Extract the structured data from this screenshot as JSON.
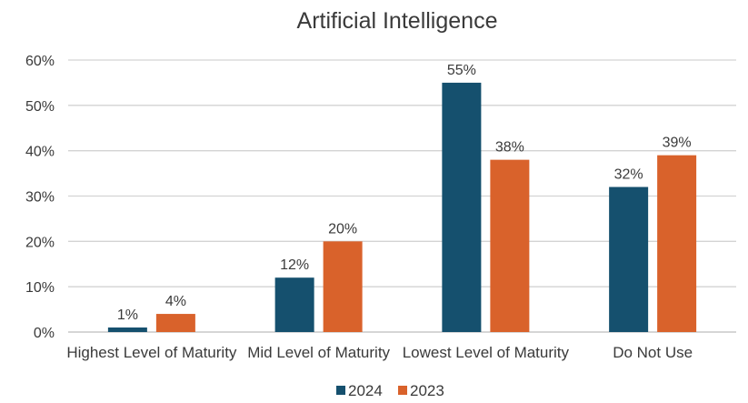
{
  "chart_data": {
    "type": "bar",
    "title": "Artificial Intelligence",
    "categories": [
      "Highest Level of Maturity",
      "Mid Level of Maturity",
      "Lowest Level of Maturity",
      "Do Not Use"
    ],
    "series": [
      {
        "name": "2024",
        "color": "#15506e",
        "values": [
          1,
          12,
          55,
          32
        ],
        "labels": [
          "1%",
          "12%",
          "55%",
          "32%"
        ]
      },
      {
        "name": "2023",
        "color": "#d9622b",
        "values": [
          4,
          20,
          38,
          39
        ],
        "labels": [
          "4%",
          "20%",
          "38%",
          "39%"
        ]
      }
    ],
    "ylim": [
      0,
      60
    ],
    "yticks": [
      0,
      10,
      20,
      30,
      40,
      50,
      60
    ],
    "ytick_labels": [
      "0%",
      "10%",
      "20%",
      "30%",
      "40%",
      "50%",
      "60%"
    ],
    "grid": true,
    "legend": "bottom"
  }
}
